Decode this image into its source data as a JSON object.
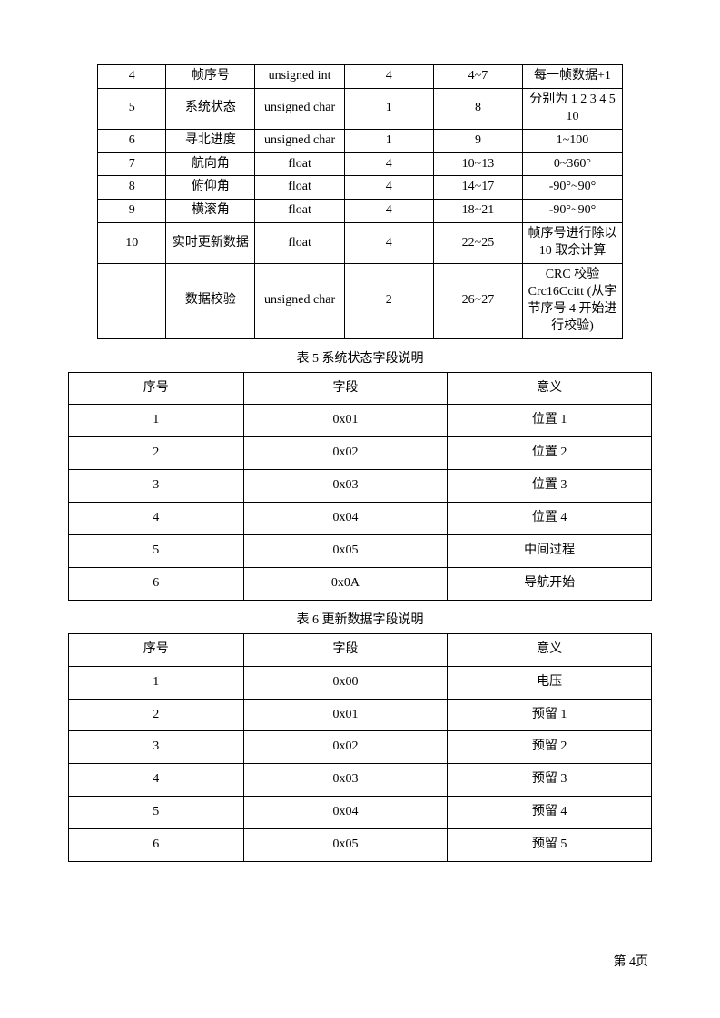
{
  "table1": {
    "rows": [
      {
        "c1": "4",
        "c2": "帧序号",
        "c3": "unsigned int",
        "c4": "4",
        "c5": "4~7",
        "c6": "每一帧数据+1"
      },
      {
        "c1": "5",
        "c2": "系统状态",
        "c3": "unsigned char",
        "c4": "1",
        "c5": "8",
        "c6": "分别为 1 2 3 4 5 10"
      },
      {
        "c1": "6",
        "c2": "寻北进度",
        "c3": "unsigned char",
        "c4": "1",
        "c5": "9",
        "c6": "1~100"
      },
      {
        "c1": "7",
        "c2": "航向角",
        "c3": "float",
        "c4": "4",
        "c5": "10~13",
        "c6": "0~360°"
      },
      {
        "c1": "8",
        "c2": "俯仰角",
        "c3": "float",
        "c4": "4",
        "c5": "14~17",
        "c6": "-90°~90°"
      },
      {
        "c1": "9",
        "c2": "横滚角",
        "c3": "float",
        "c4": "4",
        "c5": "18~21",
        "c6": "-90°~90°"
      },
      {
        "c1": "10",
        "c2": "实时更新数据",
        "c3": "float",
        "c4": "4",
        "c5": "22~25",
        "c6": "帧序号进行除以 10 取余计算"
      },
      {
        "c1": "",
        "c2": "数据校验",
        "c3": "unsigned char",
        "c4": "2",
        "c5": "26~27",
        "c6": "CRC 校验 Crc16Ccitt (从字节序号 4 开始进行校验)"
      }
    ]
  },
  "table2": {
    "caption": "表 5 系统状态字段说明",
    "headers": {
      "h1": "序号",
      "h2": "字段",
      "h3": "意义"
    },
    "rows": [
      {
        "c1": "1",
        "c2": "0x01",
        "c3": "位置 1"
      },
      {
        "c1": "2",
        "c2": "0x02",
        "c3": "位置 2"
      },
      {
        "c1": "3",
        "c2": "0x03",
        "c3": "位置 3"
      },
      {
        "c1": "4",
        "c2": "0x04",
        "c3": "位置 4"
      },
      {
        "c1": "5",
        "c2": "0x05",
        "c3": "中间过程"
      },
      {
        "c1": "6",
        "c2": "0x0A",
        "c3": "导航开始"
      }
    ]
  },
  "table3": {
    "caption": "表 6 更新数据字段说明",
    "headers": {
      "h1": "序号",
      "h2": "字段",
      "h3": "意义"
    },
    "rows": [
      {
        "c1": "1",
        "c2": "0x00",
        "c3": "电压"
      },
      {
        "c1": "2",
        "c2": "0x01",
        "c3": "预留 1"
      },
      {
        "c1": "3",
        "c2": "0x02",
        "c3": "预留 2"
      },
      {
        "c1": "4",
        "c2": "0x03",
        "c3": "预留 3"
      },
      {
        "c1": "5",
        "c2": "0x04",
        "c3": "预留 4"
      },
      {
        "c1": "6",
        "c2": "0x05",
        "c3": "预留 5"
      }
    ]
  },
  "footer": {
    "page_label": "第 4页"
  }
}
